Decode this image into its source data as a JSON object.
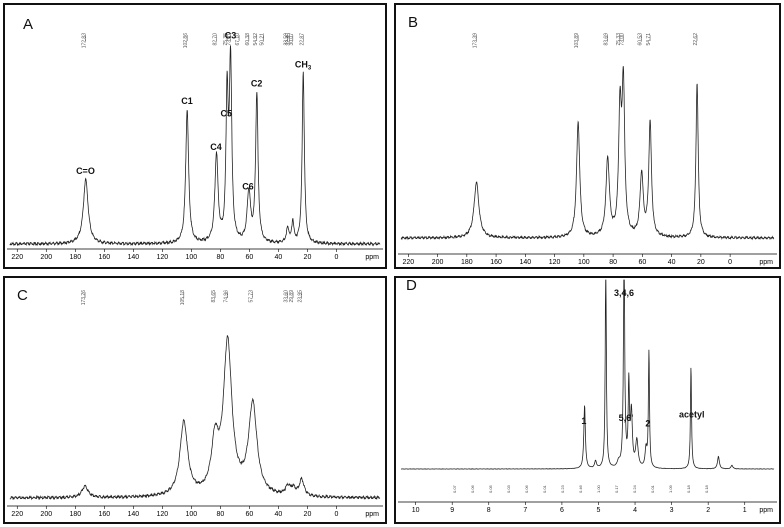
{
  "chart_data": [
    {
      "panel_label": "A",
      "type": "line",
      "x_unit": "ppm",
      "xlim": [
        225,
        -30
      ],
      "xticks": [
        "220",
        "200",
        "180",
        "160",
        "140",
        "120",
        "100",
        "80",
        "60",
        "40",
        "20",
        "0"
      ],
      "peak_values": [
        "172.83",
        "102.86",
        "82.70",
        "75.35",
        "73.01",
        "67.10",
        "60.38",
        "54.92",
        "50.21",
        "33.59",
        "32.45",
        "30.07",
        "22.87"
      ],
      "peak_labels": [
        {
          "text": "C=O",
          "x": 173
        },
        {
          "text": "C1",
          "x": 103
        },
        {
          "text": "C4",
          "x": 83
        },
        {
          "text": "C5",
          "x": 76
        },
        {
          "text": "C3",
          "x": 73
        },
        {
          "text": "C6",
          "x": 61
        },
        {
          "text": "C2",
          "x": 55
        },
        {
          "text": "CH3",
          "x": 23
        }
      ],
      "peaks": [
        {
          "x": 172.8,
          "h": 0.36,
          "w": 2.0
        },
        {
          "x": 102.9,
          "h": 0.75,
          "w": 1.2
        },
        {
          "x": 82.7,
          "h": 0.49,
          "w": 1.3
        },
        {
          "x": 75.4,
          "h": 0.8,
          "w": 0.9
        },
        {
          "x": 73.0,
          "h": 1.0,
          "w": 1.0
        },
        {
          "x": 60.4,
          "h": 0.28,
          "w": 1.4
        },
        {
          "x": 54.9,
          "h": 0.83,
          "w": 1.0
        },
        {
          "x": 33.6,
          "h": 0.08,
          "w": 1.2
        },
        {
          "x": 30.1,
          "h": 0.12,
          "w": 0.8
        },
        {
          "x": 22.9,
          "h": 0.96,
          "w": 0.9
        }
      ]
    },
    {
      "panel_label": "B",
      "type": "line",
      "x_unit": "ppm",
      "xlim": [
        225,
        -30
      ],
      "xticks": [
        "220",
        "200",
        "180",
        "160",
        "140",
        "120",
        "100",
        "80",
        "60",
        "40",
        "20",
        "0"
      ],
      "peak_values": [
        "173.39",
        "103.89",
        "83.69",
        "75.33",
        "73.00",
        "60.53",
        "54.71",
        "22.62"
      ],
      "peak_labels": [],
      "peaks": [
        {
          "x": 173.4,
          "h": 0.32,
          "w": 2.0
        },
        {
          "x": 103.9,
          "h": 0.67,
          "w": 1.3
        },
        {
          "x": 83.7,
          "h": 0.45,
          "w": 1.4
        },
        {
          "x": 75.3,
          "h": 0.7,
          "w": 1.1
        },
        {
          "x": 73.0,
          "h": 0.85,
          "w": 1.1
        },
        {
          "x": 60.5,
          "h": 0.36,
          "w": 1.3
        },
        {
          "x": 54.7,
          "h": 0.66,
          "w": 1.1
        },
        {
          "x": 22.6,
          "h": 0.9,
          "w": 0.9
        }
      ]
    },
    {
      "panel_label": "C",
      "type": "line",
      "x_unit": "ppm",
      "xlim": [
        225,
        -30
      ],
      "xticks": [
        "220",
        "200",
        "180",
        "160",
        "140",
        "120",
        "100",
        "80",
        "60",
        "40",
        "20",
        "0"
      ],
      "peak_values": [
        "173.26",
        "105.18",
        "83.65",
        "74.96",
        "57.73",
        "33.60",
        "29.89",
        "23.95"
      ],
      "peak_labels": [],
      "peaks": [
        {
          "x": 173.3,
          "h": 0.07,
          "w": 2.5
        },
        {
          "x": 105.2,
          "h": 0.45,
          "w": 3.2
        },
        {
          "x": 83.7,
          "h": 0.3,
          "w": 3.0
        },
        {
          "x": 75.0,
          "h": 0.92,
          "w": 3.5
        },
        {
          "x": 57.7,
          "h": 0.55,
          "w": 3.5
        },
        {
          "x": 33.6,
          "h": 0.05,
          "w": 2.0
        },
        {
          "x": 29.9,
          "h": 0.04,
          "w": 2.0
        },
        {
          "x": 24.0,
          "h": 0.1,
          "w": 2.0
        }
      ]
    },
    {
      "panel_label": "D",
      "type": "line",
      "x_unit": "ppm",
      "xlim": [
        10.4,
        0.2
      ],
      "xticks": [
        "10",
        "9",
        "8",
        "7",
        "6",
        "5",
        "4",
        "3",
        "2",
        "1"
      ],
      "peak_labels": [
        {
          "text": "1",
          "x": 5.4
        },
        {
          "text": "3,4,6",
          "x": 4.3
        },
        {
          "text": "5,6'",
          "x": 4.25
        },
        {
          "text": "2",
          "x": 3.65
        },
        {
          "text": "acetyl",
          "x": 2.45
        }
      ],
      "integration_values": [
        "0.07",
        "0.06",
        "0.05",
        "0.03",
        "0.06",
        "0.01",
        "0.23",
        "0.46",
        "1.00",
        "0.17",
        "0.24",
        "0.01",
        "1.09",
        "0.18",
        "0.18"
      ],
      "peaks": [
        {
          "x": 5.38,
          "h": 0.35,
          "w": 0.025
        },
        {
          "x": 5.08,
          "h": 0.04,
          "w": 0.03
        },
        {
          "x": 4.8,
          "h": 1.2,
          "w": 0.018
        },
        {
          "x": 4.45,
          "h": 0.03,
          "w": 0.04
        },
        {
          "x": 4.3,
          "h": 1.15,
          "w": 0.022
        },
        {
          "x": 4.17,
          "h": 0.45,
          "w": 0.02
        },
        {
          "x": 4.1,
          "h": 0.3,
          "w": 0.03
        },
        {
          "x": 3.95,
          "h": 0.15,
          "w": 0.04
        },
        {
          "x": 3.7,
          "h": 0.1,
          "w": 0.03
        },
        {
          "x": 3.62,
          "h": 0.64,
          "w": 0.018
        },
        {
          "x": 2.47,
          "h": 0.56,
          "w": 0.018
        },
        {
          "x": 1.72,
          "h": 0.07,
          "w": 0.03
        },
        {
          "x": 1.35,
          "h": 0.02,
          "w": 0.03
        }
      ]
    }
  ]
}
